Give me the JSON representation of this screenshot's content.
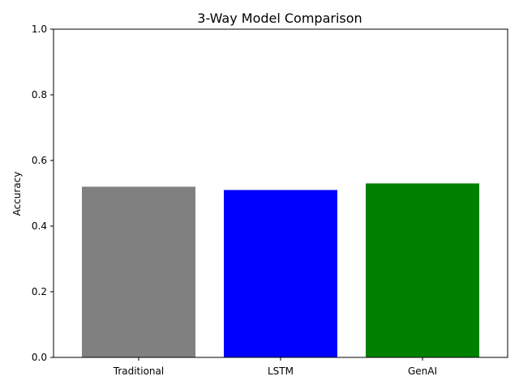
{
  "chart_data": {
    "type": "bar",
    "title": "3-Way Model Comparison",
    "xlabel": "",
    "ylabel": "Accuracy",
    "ylim": [
      0,
      1.0
    ],
    "yticks": [
      "0.0",
      "0.2",
      "0.4",
      "0.6",
      "0.8",
      "1.0"
    ],
    "categories": [
      "Traditional",
      "LSTM",
      "GenAI"
    ],
    "values": [
      0.52,
      0.51,
      0.53
    ],
    "colors": [
      "#808080",
      "#0000ff",
      "#008000"
    ],
    "grid": false,
    "legend": "none"
  }
}
